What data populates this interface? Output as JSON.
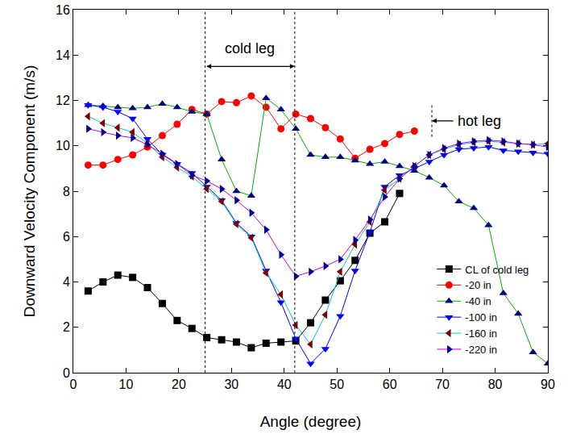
{
  "chart_data": {
    "type": "line",
    "x_label": "Angle (degree)",
    "y_label": "Downward Velocity Component (m/s)",
    "x": [
      2.81,
      5.63,
      8.44,
      11.25,
      14.06,
      16.88,
      19.69,
      22.5,
      25.31,
      28.13,
      30.94,
      33.75,
      36.56,
      39.38,
      42.19,
      45,
      47.81,
      50.63,
      53.44,
      56.25,
      59.06,
      61.88,
      64.69,
      67.5,
      70.31,
      73.13,
      75.94,
      78.75,
      81.56,
      84.38,
      87.19,
      90
    ],
    "series": [
      {
        "name": "CL of cold leg",
        "color": "#000000",
        "marker": "square",
        "values": [
          3.6,
          4.0,
          4.3,
          4.2,
          3.75,
          3.05,
          2.3,
          1.95,
          1.55,
          1.45,
          1.35,
          1.1,
          1.3,
          1.35,
          1.4,
          2.2,
          3.2,
          4.05,
          4.95,
          6.15,
          6.65,
          7.9,
          null,
          null,
          null,
          null,
          null,
          null,
          null,
          null,
          null,
          null
        ]
      },
      {
        "name": "-20 in",
        "color": "#ff0000",
        "marker": "circle",
        "values": [
          9.15,
          9.15,
          9.4,
          9.6,
          9.95,
          10.45,
          10.95,
          11.6,
          11.4,
          11.95,
          11.9,
          12.2,
          11.7,
          10.75,
          11.4,
          11.2,
          10.8,
          10.3,
          9.45,
          9.85,
          10.1,
          10.5,
          10.65,
          null,
          null,
          null,
          null,
          null,
          null,
          null,
          null,
          null
        ]
      },
      {
        "name": "-40 in",
        "color": "#000080",
        "marker": "triangle-up",
        "values": [
          11.8,
          11.75,
          11.7,
          11.65,
          11.7,
          11.85,
          11.7,
          11.5,
          11.4,
          9.4,
          8.0,
          7.8,
          12.1,
          11.6,
          10.75,
          9.6,
          9.5,
          9.5,
          9.35,
          9.2,
          9.3,
          9.1,
          8.9,
          8.6,
          8.25,
          7.55,
          7.25,
          6.5,
          3.5,
          2.6,
          0.9,
          0.4
        ]
      },
      {
        "name": "-100 in",
        "color": "#0000ff",
        "marker": "triangle-down",
        "values": [
          11.8,
          11.7,
          11.5,
          11.2,
          10.3,
          9.6,
          9.2,
          8.8,
          8.2,
          7.6,
          6.6,
          6.0,
          4.5,
          3.1,
          1.5,
          0.4,
          1.05,
          2.5,
          4.5,
          6.2,
          8.2,
          8.7,
          9.0,
          9.3,
          9.6,
          9.85,
          9.9,
          9.95,
          9.8,
          9.75,
          9.7,
          9.65
        ]
      },
      {
        "name": "-160 in",
        "color": "#800000",
        "marker": "triangle-left",
        "values": [
          11.3,
          11.0,
          10.8,
          10.6,
          10.1,
          9.5,
          9.05,
          8.65,
          8.1,
          7.55,
          6.55,
          5.95,
          4.4,
          3.45,
          2.1,
          1.25,
          2.55,
          4.45,
          5.65,
          6.65,
          8.05,
          8.55,
          9.1,
          9.6,
          9.85,
          10.05,
          10.15,
          10.2,
          10.15,
          10.1,
          10.05,
          10.1
        ]
      },
      {
        "name": "-220 in",
        "color": "#000099",
        "marker": "triangle-right",
        "values": [
          10.75,
          10.6,
          10.45,
          10.35,
          10.05,
          9.65,
          9.2,
          8.7,
          8.45,
          8.1,
          7.6,
          7.05,
          6.3,
          5.2,
          4.25,
          4.45,
          4.7,
          5.0,
          5.85,
          6.75,
          7.75,
          8.55,
          9.1,
          9.6,
          9.9,
          10.1,
          10.2,
          10.25,
          10.2,
          10.1,
          10.05,
          9.95
        ]
      }
    ],
    "annotations": [
      {
        "text": "cold leg",
        "x0": 25,
        "x1": 42,
        "y": 13.5
      },
      {
        "text": "hot leg",
        "x": 68,
        "y0": 10.4,
        "y1": 11.8
      }
    ],
    "xlim": [
      0,
      90
    ],
    "xticks": [
      0,
      10,
      20,
      30,
      40,
      50,
      60,
      70,
      80,
      90
    ],
    "ylim": [
      0,
      16
    ],
    "yticks": [
      0,
      2,
      4,
      6,
      8,
      10,
      12,
      14,
      16
    ],
    "grid": false,
    "legend": "lower right"
  }
}
